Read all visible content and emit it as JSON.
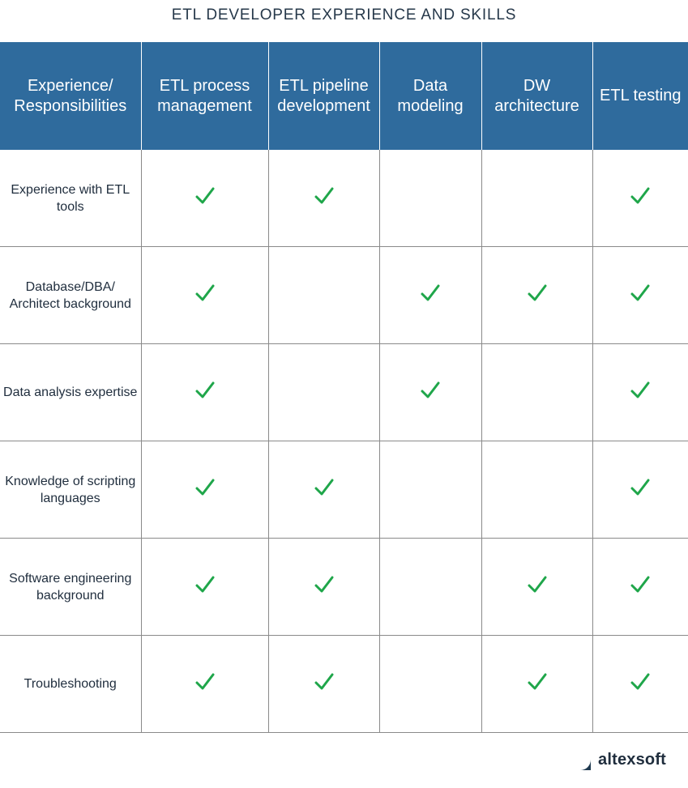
{
  "title": "ETL DEVELOPER EXPERIENCE AND SKILLS",
  "colors": {
    "header_bg": "#2f6b9d",
    "check": "#1fa64a",
    "text": "#1f2d3d"
  },
  "header": {
    "row_label": "Experience/ Responsibilities",
    "columns": [
      "ETL process management",
      "ETL pipeline development",
      "Data modeling",
      "DW architecture",
      "ETL testing"
    ]
  },
  "rows": [
    {
      "label": "Experience with ETL tools",
      "checks": [
        true,
        true,
        false,
        false,
        true
      ]
    },
    {
      "label": "Database/DBA/ Architect background",
      "checks": [
        true,
        false,
        true,
        true,
        true
      ]
    },
    {
      "label": "Data analysis expertise",
      "checks": [
        true,
        false,
        true,
        false,
        true
      ]
    },
    {
      "label": "Knowledge of scripting languages",
      "checks": [
        true,
        true,
        false,
        false,
        true
      ]
    },
    {
      "label": "Software engineering background",
      "checks": [
        true,
        true,
        false,
        true,
        true
      ]
    },
    {
      "label": "Troubleshooting",
      "checks": [
        true,
        true,
        false,
        true,
        true
      ]
    }
  ],
  "check_icon": "checkmark-icon",
  "brand": {
    "name": "altexsoft",
    "icon": "altexsoft-logo-icon"
  }
}
